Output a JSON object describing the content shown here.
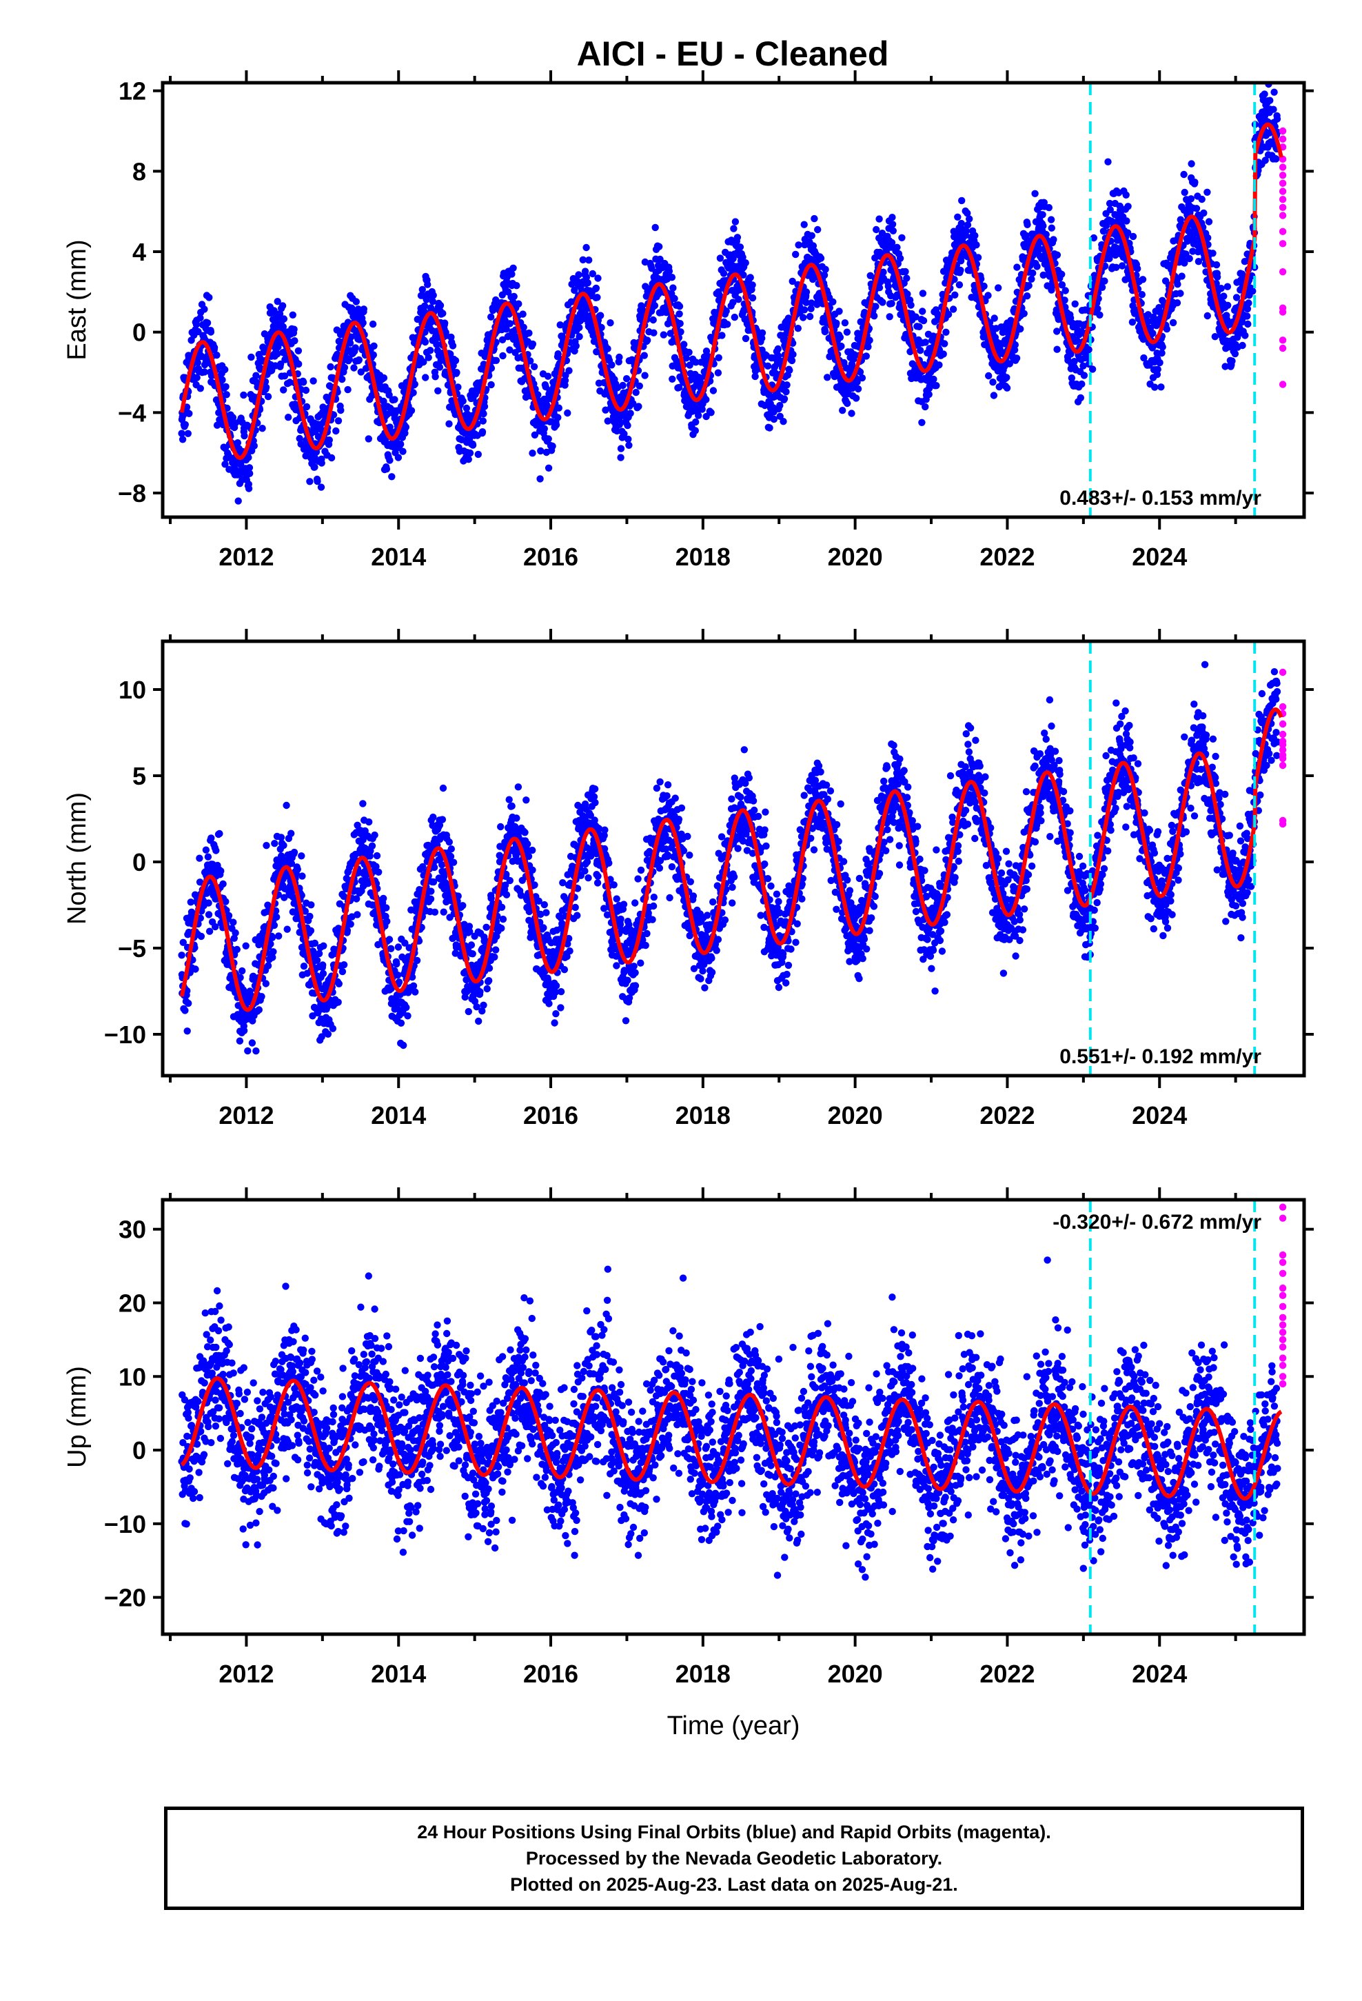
{
  "title": "AICI  - EU - Cleaned",
  "footer": {
    "line1": "24 Hour Positions Using Final Orbits (blue) and Rapid Orbits (magenta).",
    "line2": "Processed by the Nevada Geodetic Laboratory.",
    "line3": "Plotted on 2025-Aug-23. Last data on 2025-Aug-21."
  },
  "colors": {
    "final_orbits": "#0000ff",
    "rapid_orbits": "#ff00ff",
    "model": "#ff0000",
    "breaks": "#00e5ee",
    "frame": "#000000"
  },
  "chart_data": [
    {
      "type": "scatter",
      "ylabel": "East (mm)",
      "xlabel": "",
      "xlim": [
        2010.9,
        2025.9
      ],
      "ylim": [
        -9.2,
        12.4
      ],
      "yticks": [
        -8,
        -4,
        0,
        4,
        8,
        12
      ],
      "ytick_labels": [
        "−8",
        "−4",
        "0",
        "4",
        "8",
        "12"
      ],
      "xticks": [
        2012,
        2014,
        2016,
        2018,
        2020,
        2022,
        2024
      ],
      "xtick_labels": [
        "2012",
        "2014",
        "2016",
        "2018",
        "2020",
        "2022",
        "2024"
      ],
      "rate_label": "0.483+/- 0.153 mm/yr",
      "rate_label_position": "bottom-right",
      "breaks": [
        2023.09,
        2025.25
      ],
      "model": {
        "start": 2011.15,
        "start_value": -4.0,
        "trend": 0.48,
        "amplitude": 3.0,
        "phase_peak": 0.42,
        "pre_break_offset": 0.0,
        "post_break_offset": 4.1
      },
      "final_orbits": {
        "start": 2011.15,
        "end": 2025.55,
        "noise": 1.0
      },
      "rapid_orbits": {
        "x": 2025.62,
        "values": [
          10.0,
          9.6,
          9.2,
          8.6,
          8.2,
          7.8,
          7.4,
          7.0,
          6.6,
          6.2,
          5.8,
          5.0,
          4.4,
          3.0,
          1.2,
          1.0,
          -0.4,
          -0.8,
          -2.6
        ]
      }
    },
    {
      "type": "scatter",
      "ylabel": "North (mm)",
      "xlabel": "",
      "xlim": [
        2010.9,
        2025.9
      ],
      "ylim": [
        -12.4,
        12.8
      ],
      "yticks": [
        -10,
        -5,
        0,
        5,
        10
      ],
      "ytick_labels": [
        "−10",
        "−5",
        "0",
        "5",
        "10"
      ],
      "xticks": [
        2012,
        2014,
        2016,
        2018,
        2020,
        2022,
        2024
      ],
      "xtick_labels": [
        "2012",
        "2014",
        "2016",
        "2018",
        "2020",
        "2022",
        "2024"
      ],
      "rate_label": "0.551+/- 0.192 mm/yr",
      "rate_label_position": "bottom-right",
      "breaks": [
        2023.09,
        2025.25
      ],
      "model": {
        "start": 2011.15,
        "start_value": -7.8,
        "trend": 0.55,
        "amplitude": 4.0,
        "phase_peak": 0.52,
        "pre_break_offset": 0.0,
        "post_break_offset": 2.0
      },
      "final_orbits": {
        "start": 2011.15,
        "end": 2025.55,
        "noise": 1.3
      },
      "rapid_orbits": {
        "x": 2025.62,
        "values": [
          11.0,
          9.0,
          8.6,
          8.0,
          7.4,
          7.0,
          6.8,
          6.5,
          6.2,
          6.0,
          5.6,
          2.4,
          2.2
        ]
      }
    },
    {
      "type": "scatter",
      "ylabel": "Up (mm)",
      "xlabel": "Time (year)",
      "xlim": [
        2010.9,
        2025.9
      ],
      "ylim": [
        -25,
        34
      ],
      "yticks": [
        -20,
        -10,
        0,
        10,
        20,
        30
      ],
      "ytick_labels": [
        "−20",
        "−10",
        "0",
        "10",
        "20",
        "30"
      ],
      "xticks": [
        2012,
        2014,
        2016,
        2018,
        2020,
        2022,
        2024
      ],
      "xtick_labels": [
        "2012",
        "2014",
        "2016",
        "2018",
        "2020",
        "2022",
        "2024"
      ],
      "rate_label": "-0.320+/- 0.672 mm/yr",
      "rate_label_position": "top-right",
      "breaks": [
        2023.09,
        2025.25
      ],
      "model": {
        "start": 2011.15,
        "start_value": -2.0,
        "trend": -0.32,
        "amplitude": 6.0,
        "phase_peak": 0.62,
        "pre_break_offset": 0.0,
        "post_break_offset": 0.0
      },
      "final_orbits": {
        "start": 2011.15,
        "end": 2025.55,
        "noise": 4.8
      },
      "rapid_orbits": {
        "x": 2025.62,
        "values": [
          33.0,
          31.5,
          26.5,
          25.5,
          24.0,
          22.0,
          21.0,
          19.5,
          18.0,
          17.0,
          16.0,
          15.0,
          14.0,
          12.5,
          11.5,
          10.0,
          9.0
        ]
      }
    }
  ]
}
